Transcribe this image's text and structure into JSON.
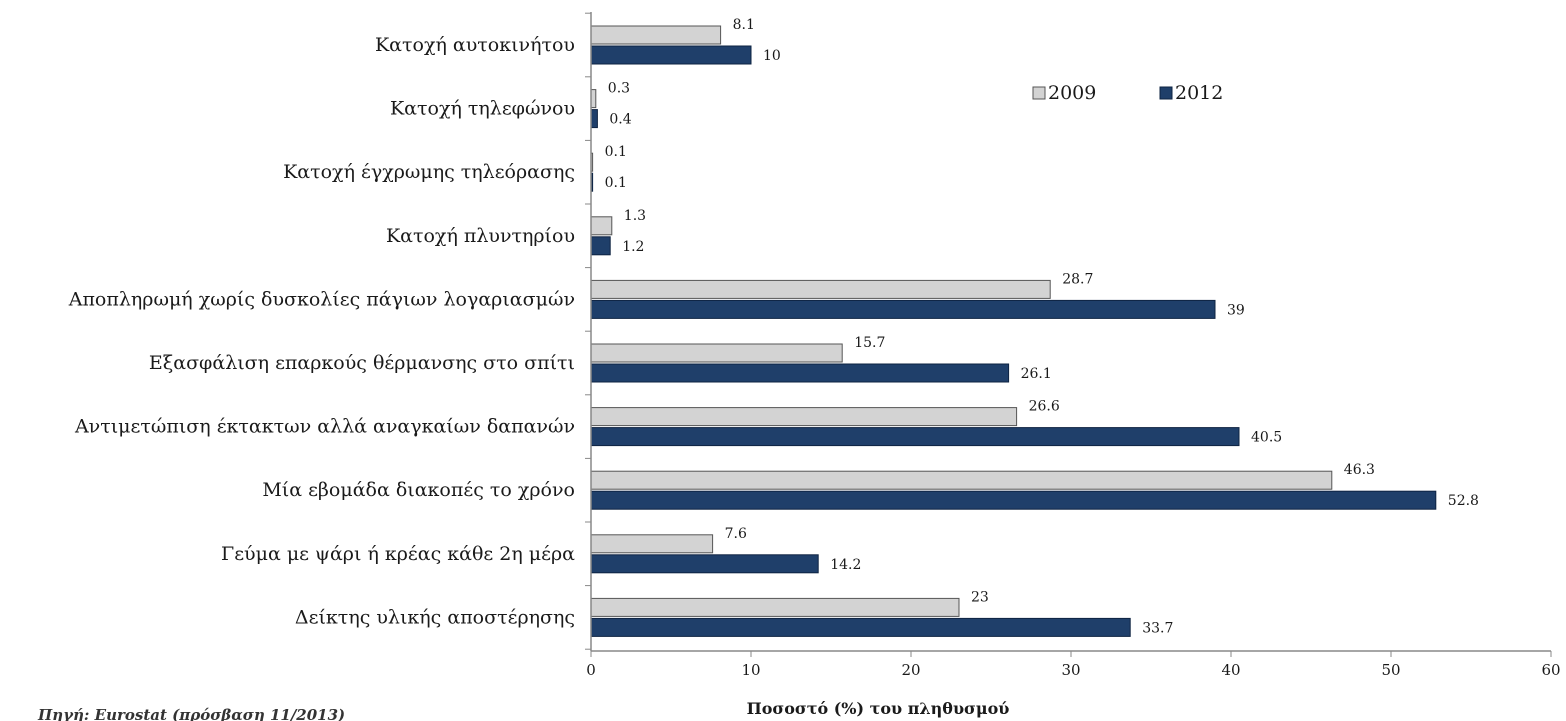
{
  "source_note": "Πηγή: Eurostat (πρόσβαση 11/2013)",
  "chart_data": {
    "type": "bar",
    "orientation": "horizontal",
    "categories": [
      "Κατοχή αυτοκινήτου",
      "Κατοχή τηλεφώνου",
      "Κατοχή έγχρωμης τηλεόρασης",
      "Κατοχή πλυντηρίου",
      "Αποπληρωμή χωρίς δυσκολίες πάγιων λογαριασμών",
      "Εξασφάλιση επαρκούς θέρμανσης στο σπίτι",
      "Αντιμετώπιση έκτακτων αλλά αναγκαίων δαπανών",
      "Μία εβομάδα διακοπές το χρόνο",
      "Γεύμα με ψάρι ή κρέας κάθε 2η μέρα",
      "Δείκτης υλικής αποστέρησης"
    ],
    "series": [
      {
        "name": "2009",
        "color": "#d3d3d3",
        "values": [
          8.1,
          0.3,
          0.1,
          1.3,
          28.7,
          15.7,
          26.6,
          46.3,
          7.6,
          23
        ],
        "labels": [
          "8.1",
          "0.3",
          "0.1",
          "1.3",
          "28.7",
          "15.7",
          "26.6",
          "46.3",
          "7.6",
          "23"
        ]
      },
      {
        "name": "2012",
        "color": "#1f3f6a",
        "values": [
          10,
          0.4,
          0.1,
          1.2,
          39,
          26.1,
          40.5,
          52.8,
          14.2,
          33.7
        ],
        "labels": [
          "10",
          "0.4",
          "0.1",
          "1.2",
          "39",
          "26.1",
          "40.5",
          "52.8",
          "14.2",
          "33.7"
        ]
      }
    ],
    "xlabel": "Ποσοστό (%) του πληθυσμού",
    "xlim": [
      0,
      60
    ],
    "xticks": [
      0,
      10,
      20,
      30,
      40,
      50,
      60
    ],
    "grid": false,
    "legend_position": "top-right"
  }
}
